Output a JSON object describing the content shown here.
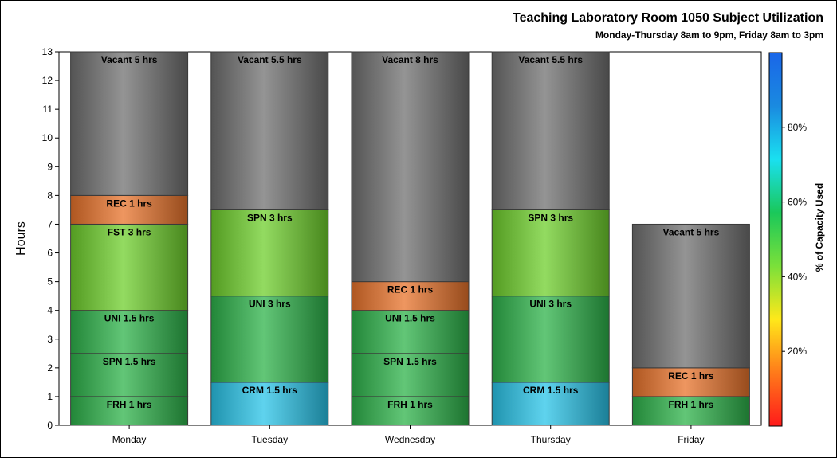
{
  "chart_data": {
    "type": "bar",
    "stacked": true,
    "title": "Teaching Laboratory Room 1050 Subject Utilization",
    "subtitle": "Monday-Thursday 8am to 9pm, Friday 8am to 3pm",
    "ylabel": "Hours",
    "ylim": [
      0,
      13
    ],
    "yticks": [
      0,
      1,
      2,
      3,
      4,
      5,
      6,
      7,
      8,
      9,
      10,
      11,
      12,
      13
    ],
    "categories": [
      "Monday",
      "Tuesday",
      "Wednesday",
      "Thursday",
      "Friday"
    ],
    "segments": [
      [
        {
          "label": "FRH 1 hrs",
          "hours": 1,
          "color": "#2db34a"
        },
        {
          "label": "SPN 1.5 hrs",
          "hours": 1.5,
          "color": "#2db34a"
        },
        {
          "label": "UNI 1.5 hrs",
          "hours": 1.5,
          "color": "#2db34a"
        },
        {
          "label": "FST 3 hrs",
          "hours": 3,
          "color": "#6fcf2c"
        },
        {
          "label": "REC 1 hrs",
          "hours": 1,
          "color": "#e8732b"
        },
        {
          "label": "Vacant 5 hrs",
          "hours": 5,
          "color": "#707070"
        }
      ],
      [
        {
          "label": "CRM 1.5 hrs",
          "hours": 1.5,
          "color": "#29c4e8"
        },
        {
          "label": "UNI 3 hrs",
          "hours": 3,
          "color": "#2db34a"
        },
        {
          "label": "SPN 3 hrs",
          "hours": 3,
          "color": "#6fcf2c"
        },
        {
          "label": "Vacant 5.5 hrs",
          "hours": 5.5,
          "color": "#707070"
        }
      ],
      [
        {
          "label": "FRH 1 hrs",
          "hours": 1,
          "color": "#2db34a"
        },
        {
          "label": "SPN 1.5 hrs",
          "hours": 1.5,
          "color": "#2db34a"
        },
        {
          "label": "UNI 1.5 hrs",
          "hours": 1.5,
          "color": "#2db34a"
        },
        {
          "label": "REC 1 hrs",
          "hours": 1,
          "color": "#e8732b"
        },
        {
          "label": "Vacant 8 hrs",
          "hours": 8,
          "color": "#707070"
        }
      ],
      [
        {
          "label": "CRM 1.5 hrs",
          "hours": 1.5,
          "color": "#29c4e8"
        },
        {
          "label": "UNI 3 hrs",
          "hours": 3,
          "color": "#2db34a"
        },
        {
          "label": "SPN 3 hrs",
          "hours": 3,
          "color": "#6fcf2c"
        },
        {
          "label": "Vacant 5.5 hrs",
          "hours": 5.5,
          "color": "#707070"
        }
      ],
      [
        {
          "label": "FRH 1 hrs",
          "hours": 1,
          "color": "#2db34a"
        },
        {
          "label": "REC 1 hrs",
          "hours": 1,
          "color": "#e8732b"
        },
        {
          "label": "Vacant 5 hrs",
          "hours": 5,
          "color": "#707070"
        }
      ]
    ],
    "colorbar": {
      "label": "% of Capacity Used",
      "range": [
        0,
        100
      ],
      "ticks": [
        "20%",
        "40%",
        "60%",
        "80%"
      ],
      "tick_values": [
        20,
        40,
        60,
        80
      ],
      "stops": [
        "#ff1a1a",
        "#ff7a1a",
        "#ffe81a",
        "#7ae03a",
        "#1ac85a",
        "#1ae0f0",
        "#1a8ae0",
        "#1a66e8"
      ]
    },
    "grid": false,
    "legend": "right (colorbar)"
  }
}
